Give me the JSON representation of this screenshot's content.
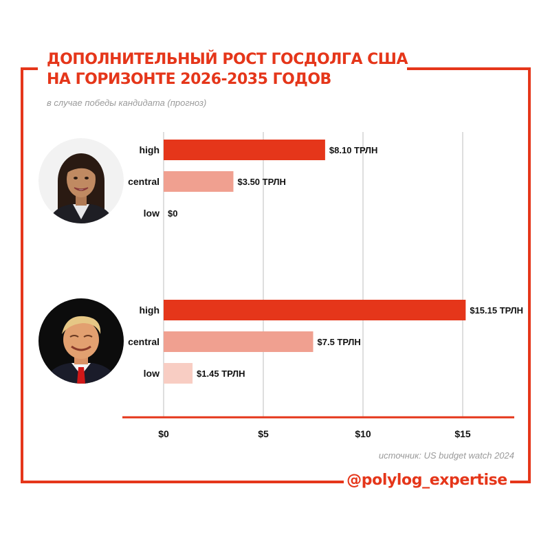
{
  "header": {
    "title_line1": "ДОПОЛНИТЕЛЬНЫЙ РОСТ ГОСДОЛГА США",
    "title_line2": "НА ГОРИЗОНТЕ 2026-2035 ГОДОВ",
    "subtitle": "в случае победы кандидата (прогноз)"
  },
  "footer": {
    "source": "источник: US budget watch 2024",
    "handle": "@polylog_expertise"
  },
  "colors": {
    "accent": "#e5361a",
    "high": "#e5361a",
    "central": "#f0a090",
    "low": "#f8cdc3",
    "grid": "#bdbdbd"
  },
  "chart_data": {
    "type": "bar",
    "orientation": "horizontal",
    "title": "ДОПОЛНИТЕЛЬНЫЙ РОСТ ГОСДОЛГА США НА ГОРИЗОНТЕ 2026-2035 ГОДОВ",
    "subtitle": "в случае победы кандидата (прогноз)",
    "xlim": [
      0,
      18
    ],
    "xticks": [
      0,
      5,
      10,
      15
    ],
    "xtick_labels": [
      "$0",
      "$5",
      "$10",
      "$15"
    ],
    "grid": "vertical",
    "groups": [
      {
        "avatar": "woman-portrait-icon",
        "bars": [
          {
            "category": "high",
            "value": 8.1,
            "label": "$8.10 ТРЛН",
            "color": "#e5361a"
          },
          {
            "category": "central",
            "value": 3.5,
            "label": "$3.50 ТРЛН",
            "color": "#f0a090"
          },
          {
            "category": "low",
            "value": 0,
            "label": "$0",
            "color": "#f8cdc3"
          }
        ]
      },
      {
        "avatar": "man-portrait-icon",
        "bars": [
          {
            "category": "high",
            "value": 15.15,
            "label": "$15.15 ТРЛН",
            "color": "#e5361a"
          },
          {
            "category": "central",
            "value": 7.5,
            "label": "$7.5 ТРЛН",
            "color": "#f0a090"
          },
          {
            "category": "low",
            "value": 1.45,
            "label": "$1.45 ТРЛН",
            "color": "#f8cdc3"
          }
        ]
      }
    ]
  }
}
